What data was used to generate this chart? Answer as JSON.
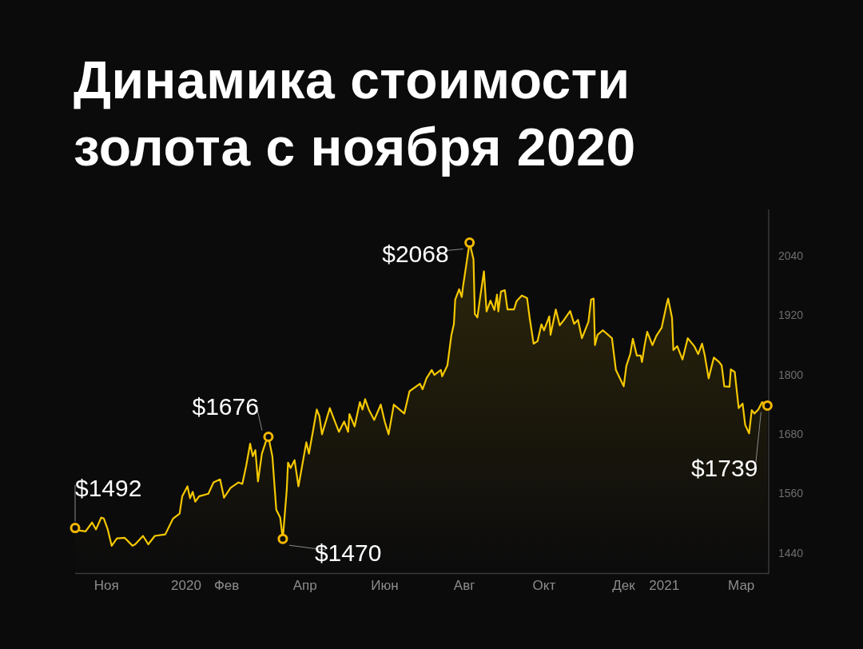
{
  "chart_data": {
    "type": "area",
    "title": "Динамика стоимости\nзолота с ноября 2020",
    "x": [
      "2019-10-08",
      "2019-10-11",
      "2019-10-16",
      "2019-10-21",
      "2019-10-24",
      "2019-10-28",
      "2019-10-30",
      "2019-11-02",
      "2019-11-05",
      "2019-11-09",
      "2019-11-15",
      "2019-11-21",
      "2019-11-23",
      "2019-11-29",
      "2019-12-03",
      "2019-12-08",
      "2019-12-16",
      "2019-12-22",
      "2019-12-27",
      "2019-12-29",
      "2020-01-02",
      "2020-01-04",
      "2020-01-06",
      "2020-01-08",
      "2020-01-11",
      "2020-01-18",
      "2020-01-22",
      "2020-01-27",
      "2020-01-30",
      "2020-02-04",
      "2020-02-10",
      "2020-02-13",
      "2020-02-16",
      "2020-02-19",
      "2020-02-21",
      "2020-02-23",
      "2020-02-25",
      "2020-02-28",
      "2020-03-02",
      "2020-03-04",
      "2020-03-07",
      "2020-03-10",
      "2020-03-13",
      "2020-03-15",
      "2020-03-18",
      "2020-03-19",
      "2020-03-21",
      "2020-03-24",
      "2020-03-27",
      "2020-04-02",
      "2020-04-04",
      "2020-04-07",
      "2020-04-10",
      "2020-04-12",
      "2020-04-14",
      "2020-04-20",
      "2020-04-23",
      "2020-04-27",
      "2020-05-01",
      "2020-05-04",
      "2020-05-05",
      "2020-05-09",
      "2020-05-13",
      "2020-05-15",
      "2020-05-17",
      "2020-05-20",
      "2020-05-24",
      "2020-05-29",
      "2020-06-01",
      "2020-06-04",
      "2020-06-08",
      "2020-06-16",
      "2020-06-20",
      "2020-06-28",
      "2020-06-30",
      "2020-07-03",
      "2020-07-07",
      "2020-07-09",
      "2020-07-14",
      "2020-07-15",
      "2020-07-19",
      "2020-07-22",
      "2020-07-24",
      "2020-07-25",
      "2020-07-28",
      "2020-07-30",
      "2020-07-31",
      "2020-08-05",
      "2020-08-08",
      "2020-08-09",
      "2020-08-11",
      "2020-08-13",
      "2020-08-16",
      "2020-08-18",
      "2020-08-21",
      "2020-08-24",
      "2020-08-26",
      "2020-08-27",
      "2020-08-29",
      "2020-09-01",
      "2020-09-03",
      "2020-09-08",
      "2020-09-10",
      "2020-09-14",
      "2020-09-18",
      "2020-09-20",
      "2020-09-23",
      "2020-09-26",
      "2020-09-29",
      "2020-10-01",
      "2020-10-05",
      "2020-10-06",
      "2020-10-10",
      "2020-10-13",
      "2020-10-16",
      "2020-10-21",
      "2020-10-24",
      "2020-10-27",
      "2020-10-30",
      "2020-11-04",
      "2020-11-06",
      "2020-11-08",
      "2020-11-09",
      "2020-11-11",
      "2020-11-15",
      "2020-11-22",
      "2020-11-25",
      "2020-12-01",
      "2020-12-03",
      "2020-12-06",
      "2020-12-08",
      "2020-12-11",
      "2020-12-14",
      "2020-12-15",
      "2020-12-17",
      "2020-12-19",
      "2020-12-23",
      "2020-12-26",
      "2020-12-30",
      "2021-01-03",
      "2021-01-04",
      "2021-01-07",
      "2021-01-08",
      "2021-01-11",
      "2021-01-15",
      "2021-01-19",
      "2021-01-24",
      "2021-01-27",
      "2021-01-30",
      "2021-02-01",
      "2021-02-04",
      "2021-02-08",
      "2021-02-12",
      "2021-02-14",
      "2021-02-16",
      "2021-02-20",
      "2021-02-21",
      "2021-02-24",
      "2021-02-27",
      "2021-03-02",
      "2021-03-04",
      "2021-03-07",
      "2021-03-09",
      "2021-03-11",
      "2021-03-14",
      "2021-03-17",
      "2021-03-21"
    ],
    "series": [
      {
        "color": "#f5c800",
        "values": [
          1492,
          1487,
          1485,
          1503,
          1489,
          1513,
          1511,
          1489,
          1456,
          1471,
          1472,
          1456,
          1459,
          1476,
          1459,
          1476,
          1479,
          1511,
          1521,
          1556,
          1576,
          1552,
          1565,
          1545,
          1556,
          1561,
          1584,
          1590,
          1553,
          1573,
          1584,
          1581,
          1618,
          1662,
          1637,
          1649,
          1586,
          1642,
          1666,
          1676,
          1637,
          1529,
          1513,
          1470,
          1568,
          1624,
          1613,
          1629,
          1576,
          1665,
          1642,
          1686,
          1731,
          1718,
          1681,
          1734,
          1713,
          1686,
          1707,
          1686,
          1722,
          1697,
          1746,
          1731,
          1752,
          1730,
          1710,
          1741,
          1707,
          1681,
          1741,
          1723,
          1768,
          1783,
          1772,
          1794,
          1811,
          1801,
          1811,
          1798,
          1820,
          1880,
          1904,
          1953,
          1974,
          1958,
          1980,
          2068,
          2034,
          1924,
          1917,
          1956,
          2010,
          1929,
          1951,
          1932,
          1963,
          1929,
          1969,
          1972,
          1933,
          1933,
          1950,
          1961,
          1956,
          1916,
          1864,
          1869,
          1903,
          1891,
          1919,
          1882,
          1933,
          1901,
          1911,
          1930,
          1904,
          1912,
          1875,
          1908,
          1953,
          1955,
          1861,
          1882,
          1891,
          1875,
          1811,
          1778,
          1819,
          1843,
          1874,
          1840,
          1840,
          1827,
          1861,
          1888,
          1861,
          1880,
          1896,
          1945,
          1955,
          1916,
          1851,
          1859,
          1832,
          1875,
          1859,
          1843,
          1864,
          1841,
          1794,
          1836,
          1827,
          1820,
          1778,
          1777,
          1812,
          1807,
          1734,
          1743,
          1700,
          1683,
          1730,
          1723,
          1731,
          1746,
          1739
        ]
      }
    ],
    "xlim": [
      "2019-10-08",
      "2021-03-22"
    ],
    "xticks": [
      {
        "value": "2019-11-01",
        "label": "Ноя"
      },
      {
        "value": "2020-01-01",
        "label": "2020"
      },
      {
        "value": "2020-02-01",
        "label": "Фев"
      },
      {
        "value": "2020-04-01",
        "label": "Апр"
      },
      {
        "value": "2020-06-01",
        "label": "Июн"
      },
      {
        "value": "2020-08-01",
        "label": "Авг"
      },
      {
        "value": "2020-10-01",
        "label": "Окт"
      },
      {
        "value": "2020-12-01",
        "label": "Дек"
      },
      {
        "value": "2021-01-01",
        "label": "2021"
      },
      {
        "value": "2021-03-01",
        "label": "Мар"
      }
    ],
    "ylim": [
      1400,
      2135
    ],
    "yticks": [
      1440,
      1560,
      1680,
      1800,
      1920,
      2040
    ],
    "grid": false,
    "legend": false,
    "annotations": [
      {
        "text": "$1492",
        "x": "2019-10-08",
        "y": 1492
      },
      {
        "text": "$1676",
        "x": "2020-03-04",
        "y": 1676
      },
      {
        "text": "$1470",
        "x": "2020-03-15",
        "y": 1470
      },
      {
        "text": "$2068",
        "x": "2020-08-05",
        "y": 2068
      },
      {
        "text": "$1739",
        "x": "2021-03-21",
        "y": 1739
      }
    ]
  }
}
